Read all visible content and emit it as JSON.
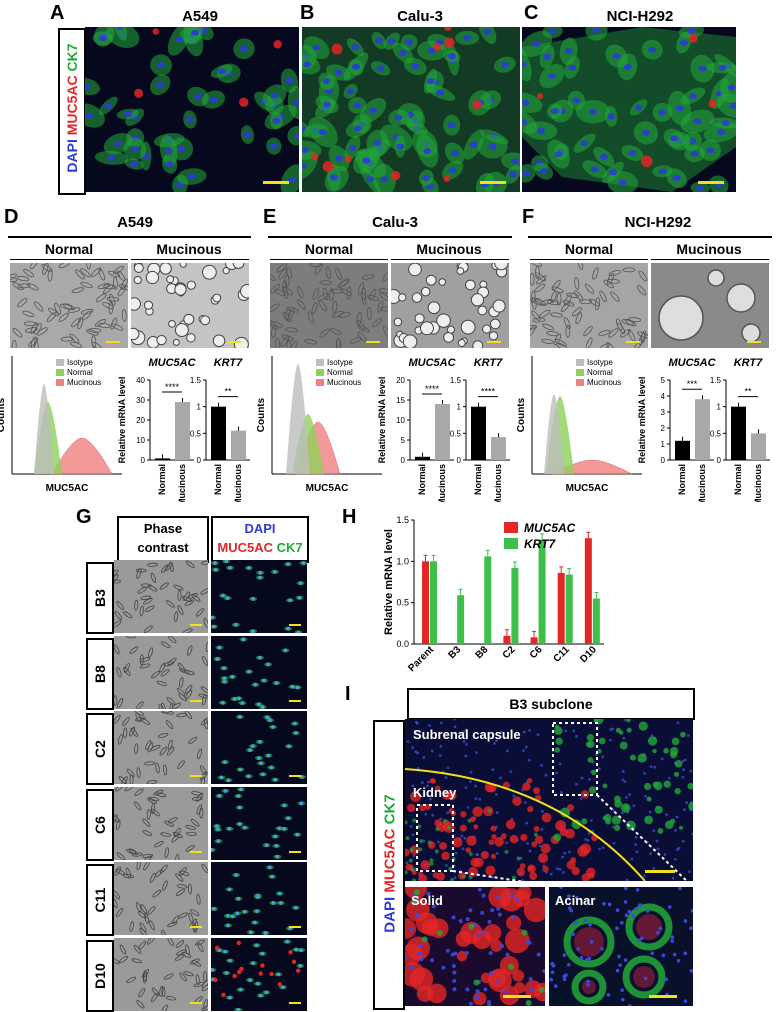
{
  "panels": {
    "A": "A",
    "B": "B",
    "C": "C",
    "D": "D",
    "E": "E",
    "F": "F",
    "G": "G",
    "H": "H",
    "I": "I"
  },
  "top_titles": {
    "a": "A549",
    "b": "Calu-3",
    "c": "NCI-H292"
  },
  "stain_label": {
    "dapi": "DAPI",
    "muc": "MUC5AC",
    "ck": "CK7"
  },
  "colors": {
    "dapi": "#2b3bd6",
    "muc5ac": "#e32626",
    "ck7": "#22a83a",
    "krt7": "#3dbf4a",
    "isotype": "#bdbdbd",
    "normal": "#8fd15a",
    "mucinous": "#f08080",
    "scale": "#f2e11a"
  },
  "cond": {
    "normal": "Normal",
    "mucinous": "Mucinous"
  },
  "flow": {
    "legend": [
      "Isotype",
      "Normal",
      "Mucinous"
    ],
    "ylabel": "Counts",
    "xlabel": "MUC5AC"
  },
  "bars": {
    "muc_title": "MUC5AC",
    "krt_title": "KRT7",
    "ylabel": "Relative mRNA level",
    "x": [
      "Normal",
      "Mucinous"
    ]
  },
  "G": {
    "phase": [
      "Phase",
      "contrast"
    ],
    "dapi": "DAPI",
    "muc": "MUC5AC",
    "ck": "CK7",
    "rows": [
      "B3",
      "B8",
      "C2",
      "C6",
      "C11",
      "D10"
    ]
  },
  "I": {
    "title": "B3 subclone",
    "capsule": "Subrenal capsule",
    "kidney": "Kidney",
    "solid": "Solid",
    "acinar": "Acinar"
  },
  "chart_data": [
    {
      "type": "bar",
      "panel": "D",
      "title": "MUC5AC",
      "categories": [
        "Normal",
        "Mucinous"
      ],
      "values": [
        0.8,
        29
      ],
      "ylim": [
        0,
        40
      ],
      "yticks": [
        0,
        10,
        20,
        30,
        40
      ],
      "ylabel": "Relative mRNA level",
      "significance": "****"
    },
    {
      "type": "bar",
      "panel": "D",
      "title": "KRT7",
      "categories": [
        "Normal",
        "Mucinous"
      ],
      "values": [
        1.0,
        0.55
      ],
      "ylim": [
        0,
        1.5
      ],
      "yticks": [
        0.0,
        0.5,
        1.0,
        1.5
      ],
      "significance": "**"
    },
    {
      "type": "bar",
      "panel": "E",
      "title": "MUC5AC",
      "categories": [
        "Normal",
        "Mucinous"
      ],
      "values": [
        0.8,
        14
      ],
      "ylim": [
        0,
        20
      ],
      "yticks": [
        0,
        5,
        10,
        15,
        20
      ],
      "ylabel": "Relative mRNA level",
      "significance": "****"
    },
    {
      "type": "bar",
      "panel": "E",
      "title": "KRT7",
      "categories": [
        "Normal",
        "Mucinous"
      ],
      "values": [
        1.0,
        0.43
      ],
      "ylim": [
        0,
        1.5
      ],
      "yticks": [
        0.0,
        0.5,
        1.0,
        1.5
      ],
      "significance": "****"
    },
    {
      "type": "bar",
      "panel": "F",
      "title": "MUC5AC",
      "categories": [
        "Normal",
        "Mucinous"
      ],
      "values": [
        1.2,
        3.8
      ],
      "ylim": [
        0,
        5
      ],
      "yticks": [
        0,
        1,
        2,
        3,
        4,
        5
      ],
      "ylabel": "Relative mRNA level",
      "significance": "***"
    },
    {
      "type": "bar",
      "panel": "F",
      "title": "KRT7",
      "categories": [
        "Normal",
        "Mucinous"
      ],
      "values": [
        1.0,
        0.5
      ],
      "ylim": [
        0,
        1.5
      ],
      "yticks": [
        0.0,
        0.5,
        1.0,
        1.5
      ],
      "significance": "**"
    },
    {
      "type": "bar",
      "panel": "H",
      "categories": [
        "Parent",
        "B3",
        "B8",
        "C2",
        "C6",
        "C11",
        "D10"
      ],
      "ylabel": "Relative mRNA level",
      "ylim": [
        0,
        1.5
      ],
      "yticks": [
        0.0,
        0.5,
        1.0,
        1.5
      ],
      "series": [
        {
          "name": "MUC5AC",
          "values": [
            1.0,
            0.01,
            0.0,
            0.1,
            0.08,
            0.86,
            1.28
          ]
        },
        {
          "name": "KRT7",
          "values": [
            1.0,
            0.59,
            1.06,
            0.92,
            1.26,
            0.84,
            0.55
          ]
        }
      ]
    }
  ]
}
